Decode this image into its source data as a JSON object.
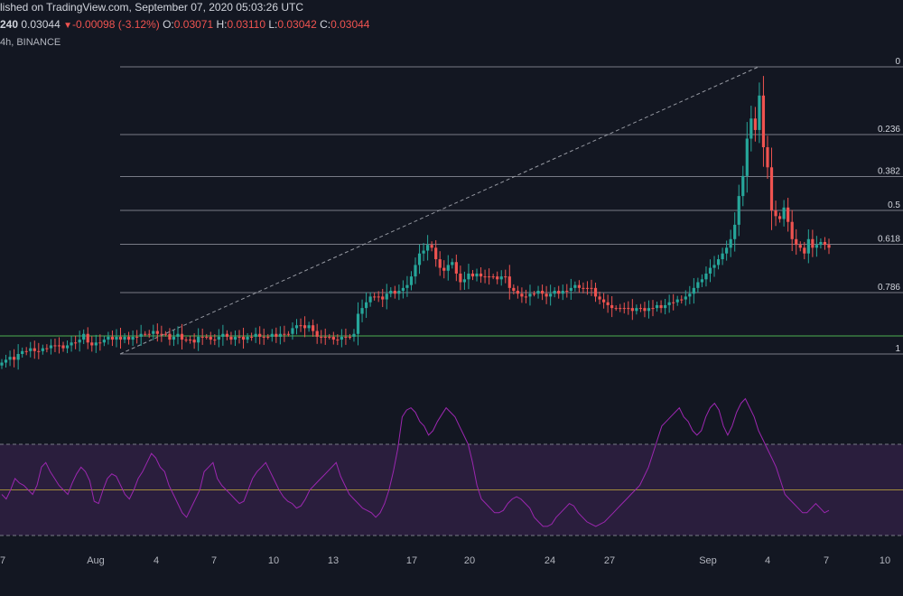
{
  "header": {
    "published": "lished on TradingView.com, September 07, 2020 05:03:26 UTC",
    "interval": "240",
    "last": "0.03044",
    "change_arrow": "▼",
    "change": "-0.00098 (-3.12%)",
    "o_label": "O:",
    "o_value": "0.03071",
    "h_label": "H:",
    "h_value": "0.03110",
    "l_label": "L:",
    "l_value": "0.03042",
    "c_label": "C:",
    "c_value": "0.03044",
    "exchange": "4h, BINANCE"
  },
  "colors": {
    "background": "#131722",
    "up": "#26a69a",
    "down": "#ef5350",
    "fib_line": "#787b86",
    "support": "#4caf50",
    "rsi_line": "#9c27b0",
    "rsi_band": "#2a1e3d",
    "rsi_mid": "#a08a3c"
  },
  "chart_data": [
    {
      "type": "candlestick",
      "x_axis": {
        "tick_labels": [
          "7",
          "Aug",
          "4",
          "7",
          "10",
          "13",
          "17",
          "20",
          "24",
          "27",
          "Sep",
          "4",
          "7",
          "10"
        ]
      },
      "fib_levels": [
        {
          "label": "0",
          "value": 0.0
        },
        {
          "label": "0.236",
          "value": 0.236
        },
        {
          "label": "0.382",
          "value": 0.382
        },
        {
          "label": "0.5",
          "value": 0.5
        },
        {
          "label": "0.618",
          "value": 0.618
        },
        {
          "label": "0.786",
          "value": 0.786
        },
        {
          "label": "1",
          "value": 1.0
        }
      ],
      "fib_label_text": [
        "0",
        "0.236",
        "0.382",
        "0.5",
        "0.618",
        "0.786",
        "1"
      ],
      "close_series_fib_scale": [
        1.03,
        1.02,
        1.01,
        1.02,
        1.0,
        0.99,
        0.99,
        0.98,
        0.99,
        0.99,
        0.98,
        0.98,
        0.97,
        0.97,
        0.97,
        0.98,
        0.97,
        0.96,
        0.96,
        0.95,
        0.93,
        0.96,
        0.97,
        0.96,
        0.96,
        0.95,
        0.94,
        0.95,
        0.94,
        0.95,
        0.94,
        0.95,
        0.94,
        0.94,
        0.93,
        0.93,
        0.93,
        0.92,
        0.93,
        0.93,
        0.93,
        0.95,
        0.94,
        0.93,
        0.95,
        0.95,
        0.95,
        0.96,
        0.94,
        0.94,
        0.94,
        0.95,
        0.95,
        0.94,
        0.93,
        0.94,
        0.95,
        0.94,
        0.94,
        0.95,
        0.94,
        0.94,
        0.93,
        0.94,
        0.94,
        0.94,
        0.93,
        0.94,
        0.93,
        0.93,
        0.93,
        0.91,
        0.9,
        0.9,
        0.91,
        0.9,
        0.92,
        0.94,
        0.94,
        0.94,
        0.94,
        0.95,
        0.95,
        0.94,
        0.94,
        0.94,
        0.93,
        0.86,
        0.84,
        0.82,
        0.8,
        0.8,
        0.8,
        0.81,
        0.79,
        0.78,
        0.79,
        0.78,
        0.77,
        0.76,
        0.73,
        0.69,
        0.65,
        0.64,
        0.62,
        0.63,
        0.67,
        0.7,
        0.71,
        0.69,
        0.68,
        0.72,
        0.75,
        0.74,
        0.72,
        0.73,
        0.72,
        0.73,
        0.73,
        0.73,
        0.73,
        0.74,
        0.73,
        0.73,
        0.77,
        0.78,
        0.79,
        0.8,
        0.8,
        0.79,
        0.79,
        0.78,
        0.79,
        0.8,
        0.79,
        0.78,
        0.79,
        0.78,
        0.78,
        0.77,
        0.76,
        0.77,
        0.77,
        0.77,
        0.77,
        0.8,
        0.81,
        0.82,
        0.83,
        0.84,
        0.84,
        0.84,
        0.84,
        0.84,
        0.85,
        0.84,
        0.84,
        0.85,
        0.84,
        0.84,
        0.83,
        0.84,
        0.83,
        0.82,
        0.82,
        0.81,
        0.81,
        0.8,
        0.79,
        0.77,
        0.75,
        0.74,
        0.72,
        0.7,
        0.69,
        0.67,
        0.65,
        0.63,
        0.6,
        0.55,
        0.45,
        0.38,
        0.25,
        0.18,
        0.22,
        0.1,
        0.28,
        0.35,
        0.5,
        0.52,
        0.53,
        0.49,
        0.54,
        0.6,
        0.62,
        0.63,
        0.65,
        0.6,
        0.63,
        0.62,
        0.61,
        0.62,
        0.63
      ],
      "rsi_levels": {
        "upper": 70,
        "middle": 50,
        "lower": 30
      },
      "rsi_series": [
        48,
        46,
        50,
        55,
        53,
        52,
        50,
        48,
        52,
        60,
        62,
        58,
        55,
        52,
        50,
        48,
        53,
        57,
        60,
        58,
        54,
        45,
        44,
        50,
        55,
        57,
        56,
        52,
        48,
        46,
        50,
        55,
        58,
        62,
        66,
        64,
        60,
        58,
        52,
        48,
        44,
        40,
        38,
        42,
        46,
        50,
        58,
        60,
        62,
        55,
        52,
        50,
        48,
        46,
        44,
        45,
        50,
        55,
        58,
        60,
        62,
        58,
        54,
        50,
        47,
        45,
        44,
        42,
        43,
        46,
        50,
        52,
        54,
        56,
        58,
        60,
        62,
        56,
        52,
        48,
        46,
        44,
        42,
        41,
        40,
        38,
        40,
        44,
        50,
        58,
        68,
        82,
        85,
        86,
        84,
        80,
        78,
        74,
        76,
        80,
        83,
        86,
        84,
        82,
        78,
        74,
        70,
        62,
        52,
        46,
        44,
        42,
        40,
        40,
        41,
        44,
        46,
        47,
        46,
        44,
        42,
        38,
        36,
        34,
        34,
        35,
        38,
        40,
        42,
        44,
        43,
        40,
        38,
        36,
        35,
        34,
        35,
        36,
        38,
        40,
        42,
        44,
        46,
        48,
        50,
        52,
        56,
        60,
        66,
        72,
        78,
        80,
        82,
        84,
        86,
        82,
        80,
        76,
        74,
        76,
        82,
        86,
        88,
        85,
        78,
        74,
        78,
        84,
        88,
        90,
        86,
        82,
        76,
        72,
        68,
        64,
        60,
        54,
        48,
        46,
        44,
        42,
        40,
        40,
        42,
        44,
        42,
        40,
        41
      ]
    }
  ]
}
